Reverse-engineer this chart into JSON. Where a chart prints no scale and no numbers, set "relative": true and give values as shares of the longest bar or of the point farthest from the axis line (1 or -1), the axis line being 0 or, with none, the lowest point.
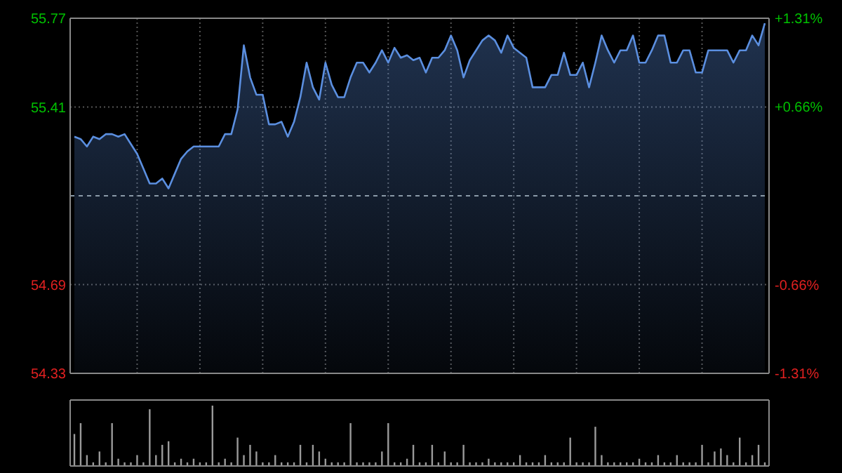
{
  "chart_data": [
    {
      "type": "area",
      "categories": [
        null,
        null,
        null,
        null,
        null,
        null,
        null,
        null,
        null,
        null,
        null,
        null,
        null,
        null,
        null,
        null,
        null,
        null,
        null,
        null,
        null,
        null,
        null,
        null,
        null,
        null,
        null,
        null,
        null,
        null,
        null,
        null,
        null,
        null,
        null,
        null,
        null,
        null,
        null,
        null,
        null,
        null,
        null,
        null,
        null,
        null,
        null,
        null,
        null,
        null,
        null,
        null,
        null,
        null,
        null,
        null,
        null,
        null,
        null,
        null,
        null,
        null,
        null,
        null,
        null,
        null,
        null,
        null,
        null,
        null,
        null,
        null,
        null,
        null,
        null,
        null,
        null,
        null,
        null,
        null,
        null,
        null,
        null,
        null,
        null,
        null,
        null,
        null,
        null,
        null,
        null,
        null,
        null,
        null,
        null,
        null,
        null,
        null,
        null,
        null,
        null,
        null,
        null,
        null,
        null,
        null,
        null,
        null,
        null,
        null,
        null
      ],
      "ylim": [
        54.33,
        55.77
      ],
      "yticks": [
        54.33,
        54.69,
        55.41,
        55.77
      ],
      "y2lim": [
        -1.31,
        1.31
      ],
      "y2ticks": [
        {
          "value": -1.31,
          "label": "-1.31%"
        },
        {
          "value": -0.66,
          "label": "-0.66%"
        },
        {
          "value": 0.66,
          "label": "+0.66%"
        },
        {
          "value": 1.31,
          "label": "+1.31%"
        }
      ],
      "grid": true,
      "ref_lines": [
        {
          "axis": "y",
          "value": 55.05,
          "color": "#8a9aa8",
          "line_style": "dashed"
        }
      ],
      "series": [
        {
          "color": "#5b8fe0",
          "values": [
            55.29,
            55.28,
            55.25,
            55.29,
            55.28,
            55.3,
            55.3,
            55.29,
            55.3,
            55.26,
            55.22,
            55.16,
            55.1,
            55.1,
            55.12,
            55.08,
            55.14,
            55.2,
            55.23,
            55.25,
            55.25,
            55.25,
            55.25,
            55.25,
            55.3,
            55.3,
            55.4,
            55.66,
            55.53,
            55.46,
            55.46,
            55.34,
            55.34,
            55.35,
            55.29,
            55.35,
            55.45,
            55.59,
            55.49,
            55.44,
            55.59,
            55.5,
            55.45,
            55.45,
            55.53,
            55.59,
            55.59,
            55.55,
            55.59,
            55.64,
            55.59,
            55.65,
            55.61,
            55.62,
            55.6,
            55.61,
            55.55,
            55.61,
            55.61,
            55.64,
            55.7,
            55.64,
            55.53,
            55.6,
            55.64,
            55.68,
            55.7,
            55.68,
            55.63,
            55.7,
            55.65,
            55.63,
            55.61,
            55.49,
            55.49,
            55.49,
            55.54,
            55.54,
            55.63,
            55.54,
            55.54,
            55.59,
            55.49,
            55.59,
            55.7,
            55.64,
            55.59,
            55.64,
            55.64,
            55.7,
            55.59,
            55.59,
            55.64,
            55.7,
            55.7,
            55.59,
            55.59,
            55.64,
            55.64,
            55.55,
            55.55,
            55.64,
            55.64,
            55.64,
            55.64,
            55.59,
            55.64,
            55.64,
            55.7,
            55.66,
            55.75
          ]
        }
      ]
    },
    {
      "type": "bar",
      "relative": true,
      "categories": [
        null,
        null,
        null,
        null,
        null,
        null,
        null,
        null,
        null,
        null,
        null,
        null,
        null,
        null,
        null,
        null,
        null,
        null,
        null,
        null,
        null,
        null,
        null,
        null,
        null,
        null,
        null,
        null,
        null,
        null,
        null,
        null,
        null,
        null,
        null,
        null,
        null,
        null,
        null,
        null,
        null,
        null,
        null,
        null,
        null,
        null,
        null,
        null,
        null,
        null,
        null,
        null,
        null,
        null,
        null,
        null,
        null,
        null,
        null,
        null,
        null,
        null,
        null,
        null,
        null,
        null,
        null,
        null,
        null,
        null,
        null,
        null,
        null,
        null,
        null,
        null,
        null,
        null,
        null,
        null,
        null,
        null,
        null,
        null,
        null,
        null,
        null,
        null,
        null,
        null,
        null,
        null,
        null,
        null,
        null,
        null,
        null,
        null,
        null,
        null,
        null,
        null,
        null,
        null,
        null,
        null,
        null,
        null,
        null,
        null,
        null
      ],
      "series": [
        {
          "color": "#9a9a9a",
          "values": [
            0.53,
            0.71,
            0.18,
            0.06,
            0.24,
            0.06,
            0.71,
            0.12,
            0.06,
            0.06,
            0.18,
            0.06,
            0.94,
            0.18,
            0.35,
            0.41,
            0.06,
            0.12,
            0.06,
            0.12,
            0.06,
            0.06,
            1,
            0.06,
            0.12,
            0.06,
            0.47,
            0.18,
            0.35,
            0.24,
            0.06,
            0.06,
            0.18,
            0.06,
            0.06,
            0.06,
            0.35,
            0.06,
            0.35,
            0.24,
            0.12,
            0.06,
            0.06,
            0.06,
            0.71,
            0.06,
            0.06,
            0.06,
            0.06,
            0.24,
            0.71,
            0.06,
            0.06,
            0.12,
            0.35,
            0.06,
            0.06,
            0.35,
            0.06,
            0.24,
            0.06,
            0.06,
            0.35,
            0.06,
            0.06,
            0.06,
            0.12,
            0.06,
            0.06,
            0.06,
            0.06,
            0.18,
            0.06,
            0.06,
            0.06,
            0.18,
            0.06,
            0.06,
            0.06,
            0.47,
            0.06,
            0.06,
            0.06,
            0.65,
            0.18,
            0.06,
            0.06,
            0.06,
            0.06,
            0.06,
            0.12,
            0.06,
            0.06,
            0.18,
            0.06,
            0.06,
            0.18,
            0.06,
            0.06,
            0.06,
            0.35,
            0.06,
            0.24,
            0.29,
            0.18,
            0.06,
            0.47,
            0.06,
            0.18,
            0.35,
            0.06
          ]
        }
      ]
    }
  ]
}
